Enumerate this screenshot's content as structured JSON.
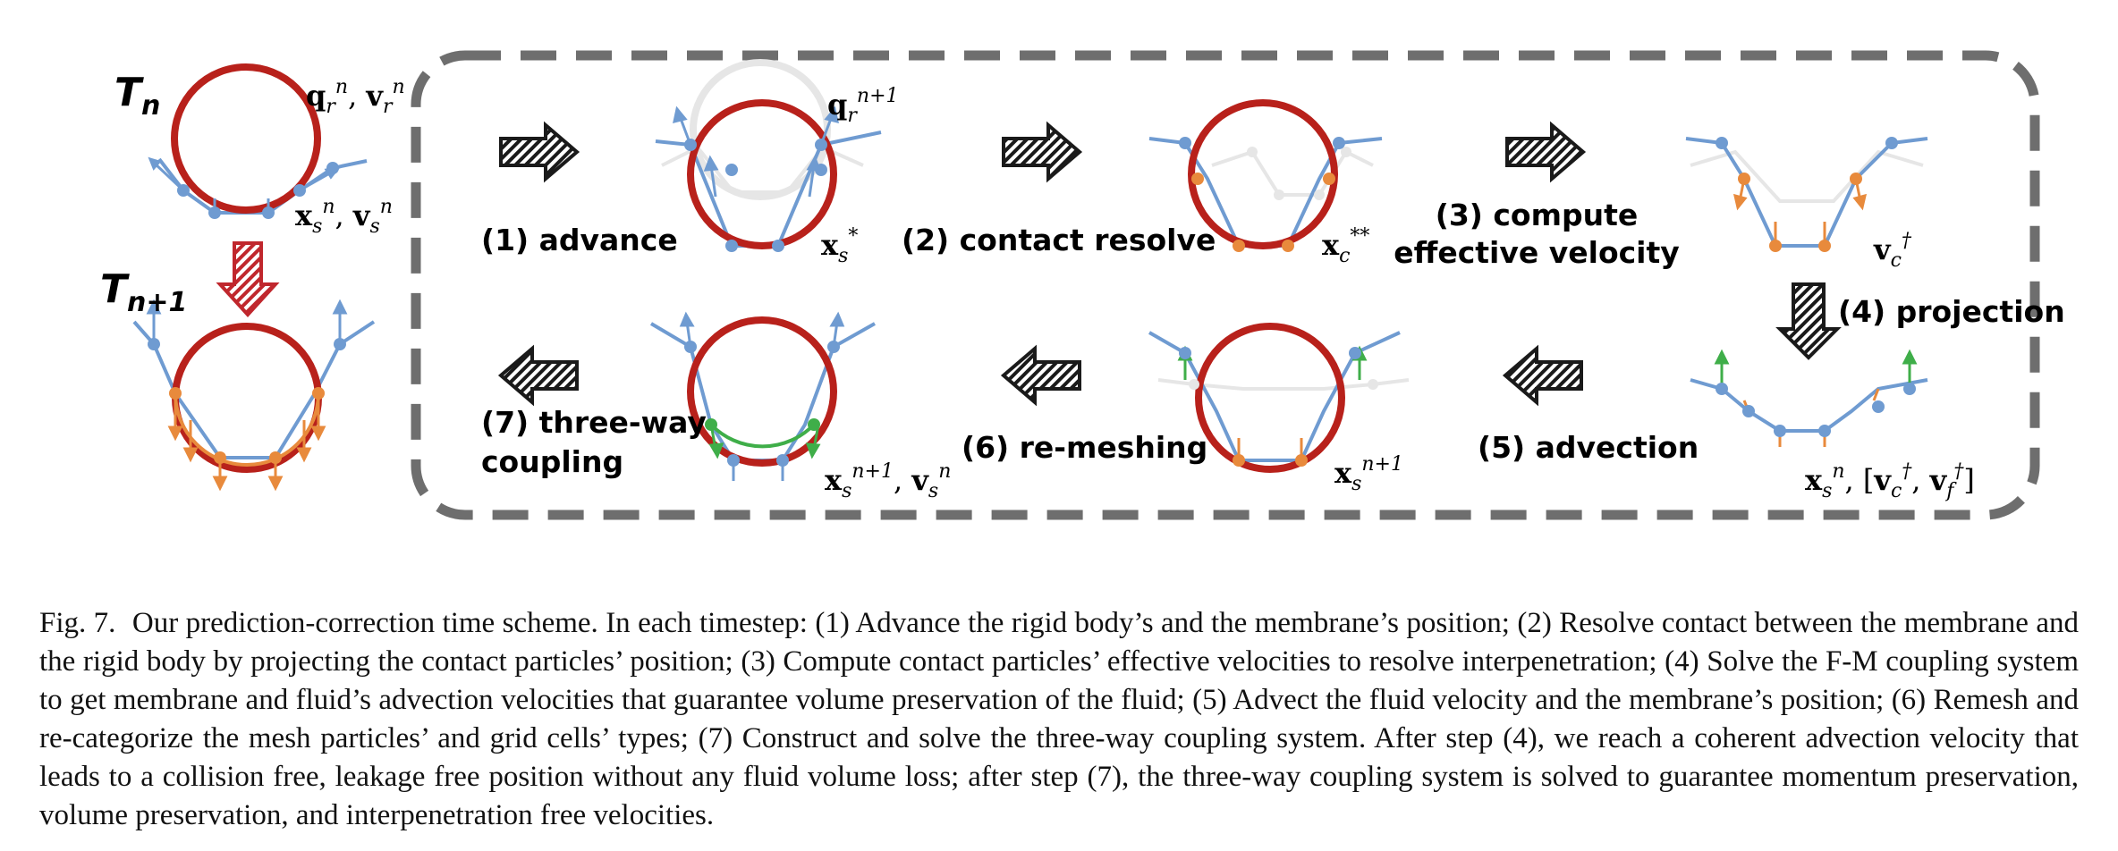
{
  "states": {
    "t_n": {
      "base": "T",
      "sub": "n"
    },
    "t_n1": {
      "base": "T",
      "sub": "n+1"
    }
  },
  "steps": {
    "s1": "(1) advance",
    "s2": "(2) contact resolve",
    "s3_line1": "(3) compute",
    "s3_line2": "effective velocity",
    "s4": "(4) projection",
    "s5": "(5) advection",
    "s6": "(6) re-meshing",
    "s7_line1": "(7) three-way",
    "s7_line2": "coupling"
  },
  "math": {
    "qr_n": {
      "a": "q",
      "a_sub": "r",
      "a_sup": "n",
      "b": "v",
      "b_sub": "r",
      "b_sup": "n"
    },
    "xs_n": {
      "a": "x",
      "a_sub": "s",
      "a_sup": "n",
      "b": "v",
      "b_sub": "s",
      "b_sup": "n"
    },
    "qr_n1": {
      "a": "q",
      "a_sub": "r",
      "a_sup": "n+1"
    },
    "xs_star": {
      "a": "x",
      "a_sub": "s",
      "a_sup": "*"
    },
    "xc_2star": {
      "a": "x",
      "a_sub": "c",
      "a_sup": "**"
    },
    "vc_dag": {
      "a": "v",
      "a_sub": "c",
      "a_sup": "†"
    },
    "xs_n_bracket": {
      "a": "x",
      "a_sub": "s",
      "a_sup": "n",
      "b": "v",
      "b_sub": "c",
      "b_sup": "†",
      "c": "v",
      "c_sub": "f",
      "c_sup": "†"
    },
    "xs_n1": {
      "a": "x",
      "a_sub": "s",
      "a_sup": "n+1"
    },
    "xs_n1_vs": {
      "a": "x",
      "a_sub": "s",
      "a_sup": "n+1",
      "b": "v",
      "b_sub": "s",
      "b_sup": "n"
    }
  },
  "colors": {
    "rigid": "#b8211b",
    "membrane": "#6f9bd1",
    "contact": "#e88a3c",
    "corrected": "#3fae49",
    "ghost": "#e6e6e6",
    "frame": "#6e6e6e",
    "arrow_dark": "#1a1a1a",
    "arrow_red": "#c0272d"
  },
  "caption": {
    "fig": "Fig. 7.",
    "text": "Our prediction-correction time scheme. In each timestep: (1) Advance the rigid body’s and the membrane’s position; (2) Resolve contact between the membrane and the rigid body by projecting the contact particles’ position; (3) Compute contact particles’ effective velocities to resolve interpenetration; (4) Solve the F-M coupling system to get membrane and fluid’s advection velocities that guarantee volume preservation of the fluid; (5) Advect the fluid velocity and the membrane’s position; (6) Remesh and re-categorize the mesh particles’ and grid cells’ types; (7) Construct and solve the three-way coupling system. After step (4), we reach a coherent advection velocity that leads to a collision free, leakage free position without any fluid volume loss; after step (7), the three-way coupling system is solved to guarantee momentum preservation, volume preservation, and interpenetration free velocities."
  }
}
